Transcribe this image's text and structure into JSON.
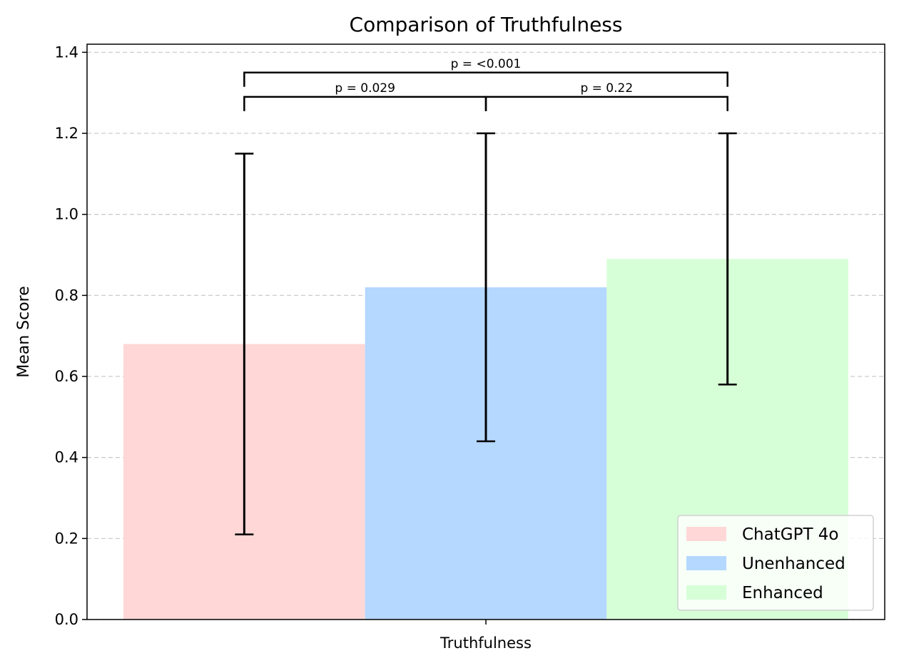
{
  "chart_data": {
    "type": "bar",
    "title": "Comparison of Truthfulness",
    "xlabel": "Truthfulness",
    "ylabel": "Mean Score",
    "ylim": [
      0,
      1.42
    ],
    "yticks": [
      "0.0",
      "0.2",
      "0.4",
      "0.6",
      "0.8",
      "1.0",
      "1.2",
      "1.4"
    ],
    "grid": "horizontal dashed",
    "legend_position": "bottom-right",
    "categories": [
      "Truthfulness"
    ],
    "series": [
      {
        "name": "ChatGPT 4o",
        "value": 0.68,
        "err_low": 0.21,
        "err_high": 1.15,
        "color": "#ffd7d7"
      },
      {
        "name": "Unenhanced",
        "value": 0.82,
        "err_low": 0.44,
        "err_high": 1.2,
        "color": "#b4d8ff"
      },
      {
        "name": "Enhanced",
        "value": 0.89,
        "err_low": 0.58,
        "err_high": 1.2,
        "color": "#d7ffd7"
      }
    ],
    "significance": [
      {
        "from": 0,
        "to": 1,
        "label": "p = 0.029",
        "y": 1.29
      },
      {
        "from": 1,
        "to": 2,
        "label": "p = 0.22",
        "y": 1.29
      },
      {
        "from": 0,
        "to": 2,
        "label": "p = <0.001",
        "y": 1.35
      }
    ]
  }
}
